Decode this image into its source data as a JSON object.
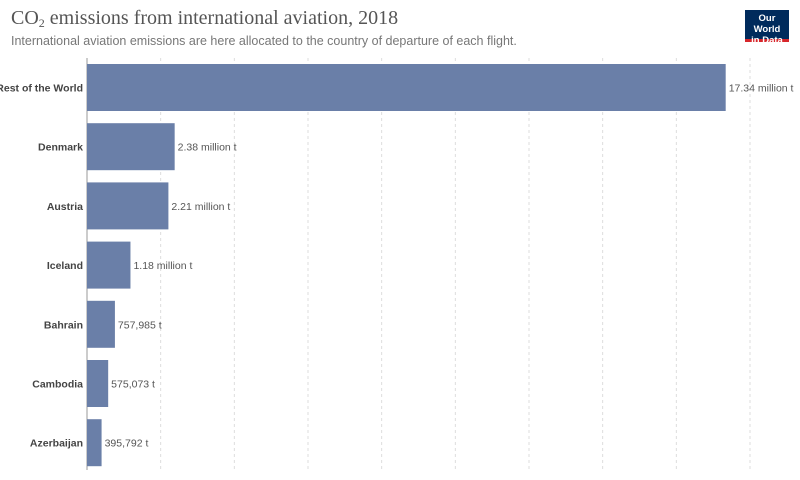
{
  "header": {
    "title_main": "CO",
    "title_subscript": "2",
    "title_rest": " emissions from international aviation, 2018",
    "subtitle": "International aviation emissions are here allocated to the country of departure of each flight.",
    "logo_line1": "Our World",
    "logo_line2": "in Data"
  },
  "colors": {
    "bar": "#6a7fa8",
    "logo_bg": "#002b5c",
    "logo_accent": "#d7262b"
  },
  "chart_data": {
    "type": "bar",
    "orientation": "horizontal",
    "title": "CO₂ emissions from international aviation, 2018",
    "subtitle": "International aviation emissions are here allocated to the country of departure of each flight.",
    "categories": [
      "Rest of the World",
      "Denmark",
      "Austria",
      "Iceland",
      "Bahrain",
      "Cambodia",
      "Azerbaijan"
    ],
    "values": [
      17340000,
      2380000,
      2210000,
      1180000,
      757985,
      575073,
      395792
    ],
    "value_labels": [
      "17.34 million t",
      "2.38 million t",
      "2.21 million t",
      "1.18 million t",
      "757,985 t",
      "575,073 t",
      "395,792 t"
    ],
    "unit": "t",
    "xlim": [
      0,
      18000000
    ],
    "grid_step": 2000000,
    "grid": true,
    "legend": "none"
  }
}
